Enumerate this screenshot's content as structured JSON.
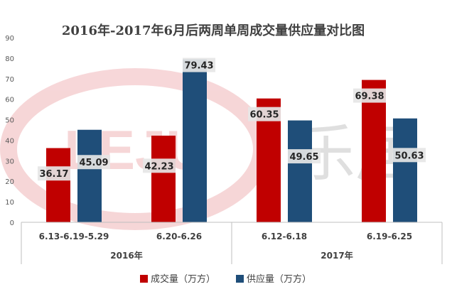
{
  "chart_data": {
    "type": "bar",
    "title": "2016年-2017年6月后两周单周成交量供应量对比图",
    "categories": [
      "6.13-6.19-5.29",
      "6.20-6.26",
      "6.12-6.18",
      "6.19-6.25"
    ],
    "groups": [
      {
        "label": "2016年",
        "categories": [
          "6.13-6.19-5.29",
          "6.20-6.26"
        ]
      },
      {
        "label": "2017年",
        "categories": [
          "6.12-6.18",
          "6.19-6.25"
        ]
      }
    ],
    "series": [
      {
        "name": "成交量（万方）",
        "color": "#c00000",
        "values": [
          36.17,
          42.23,
          60.35,
          69.38
        ]
      },
      {
        "name": "供应量（万方）",
        "color": "#1f4e79",
        "values": [
          45.09,
          79.43,
          49.65,
          50.63
        ]
      }
    ],
    "ylim": [
      0,
      90
    ],
    "yticks": [
      0,
      10,
      20,
      30,
      40,
      50,
      60,
      70,
      80,
      90
    ],
    "grid": false,
    "legend_position": "bottom",
    "watermark": "LEJU 乐居"
  }
}
